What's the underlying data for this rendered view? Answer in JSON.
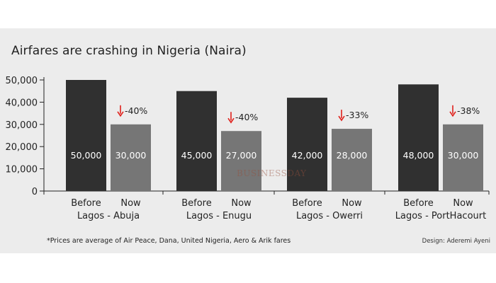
{
  "chart_data": {
    "type": "bar",
    "title": "Airfares are crashing in Nigeria (Naira)",
    "ylim": [
      0,
      50000
    ],
    "yticks": [
      "0",
      "10,000",
      "20,000",
      "30,000",
      "40,000",
      "50,000"
    ],
    "ytick_values": [
      0,
      10000,
      20000,
      30000,
      40000,
      50000
    ],
    "grid": false,
    "groups": [
      "Lagos - Abuja",
      "Lagos - Enugu",
      "Lagos - Owerri",
      "Lagos - PortHacourt"
    ],
    "series_labels": [
      "Before",
      "Now"
    ],
    "series": [
      {
        "name": "Before",
        "color": "#303030",
        "values": [
          50000,
          45000,
          42000,
          48000
        ],
        "labels": [
          "50,000",
          "45,000",
          "42,000",
          "48,000"
        ]
      },
      {
        "name": "Now",
        "color": "#767676",
        "values": [
          30000,
          27000,
          28000,
          30000
        ],
        "labels": [
          "30,000",
          "27,000",
          "28,000",
          "30,000"
        ]
      }
    ],
    "changes": [
      "-40%",
      "-40%",
      "-33%",
      "-38%"
    ],
    "change_arrow_color": "#e0201b"
  },
  "footnote": "*Prices are average of Air Peace, Dana, United Nigeria, Aero & Arik fares",
  "credit": "Design: Aderemi Ayeni",
  "watermark": "BUSINESSDAY"
}
